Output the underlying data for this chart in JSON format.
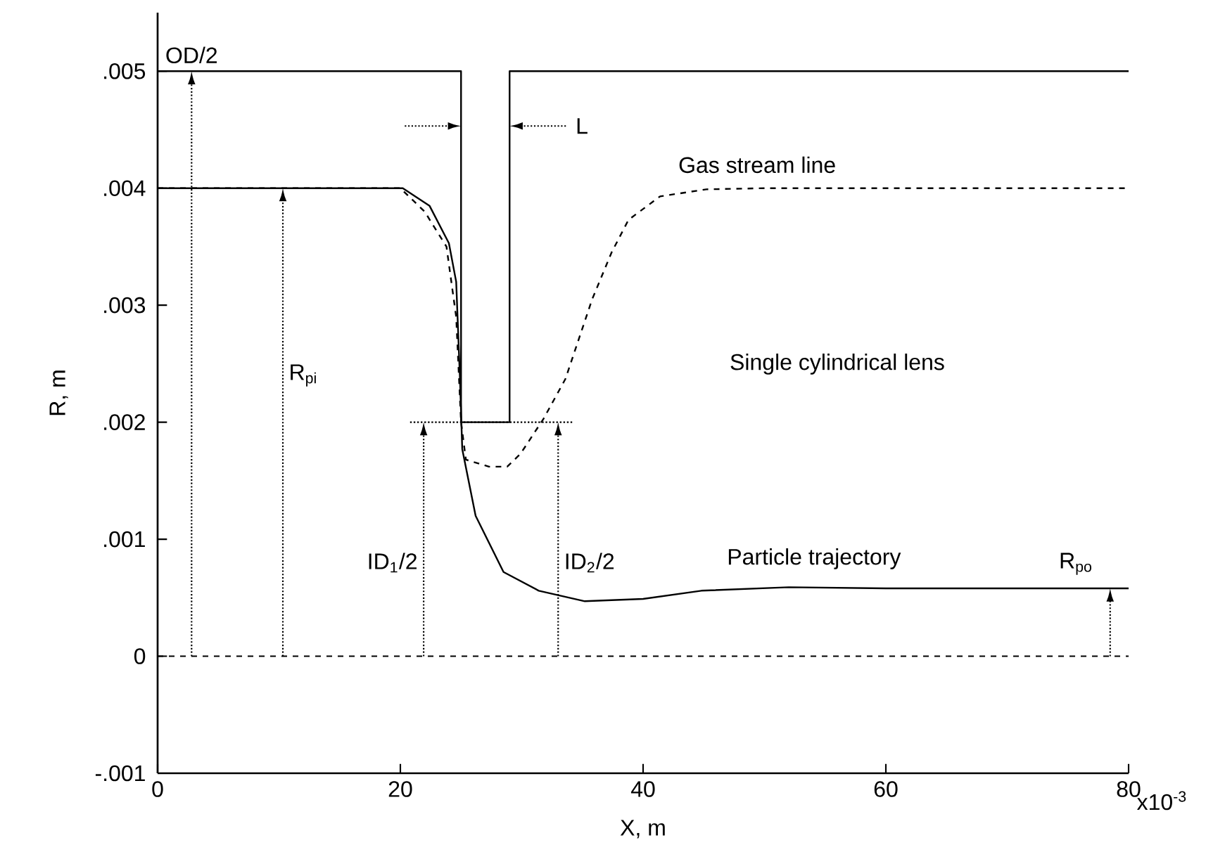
{
  "chart_data": {
    "type": "line",
    "xlabel": "X, m",
    "ylabel": "R, m",
    "xlim": [
      0,
      80
    ],
    "ylim": [
      -0.001,
      0.0055
    ],
    "xticks": [
      0,
      20,
      40,
      60,
      80
    ],
    "yticks": [
      {
        "value": -0.001,
        "label": "-.001"
      },
      0,
      {
        "value": 0.001,
        "label": ".001"
      },
      {
        "value": 0.002,
        "label": ".002"
      },
      {
        "value": 0.003,
        "label": ".003"
      },
      {
        "value": 0.004,
        "label": ".004"
      },
      {
        "value": 0.005,
        "label": ".005"
      }
    ],
    "series": [
      {
        "color": "#000000",
        "line_style": "solid",
        "x": [
          0,
          25,
          25,
          29,
          29,
          80
        ],
        "values": [
          0.005,
          0.005,
          0.002,
          0.002,
          0.005,
          0.005
        ]
      },
      {
        "color": "#000000",
        "line_style": "dashed",
        "x": [
          0,
          20,
          22,
          23.8,
          24.6,
          25,
          25.4,
          27.3,
          28.8,
          29.9,
          31.8,
          33.6,
          35.8,
          37.4,
          38.8,
          41.4,
          45.2,
          50,
          80
        ],
        "values": [
          0.004,
          0.004,
          0.0038,
          0.0035,
          0.0029,
          0.002,
          0.00168,
          0.00162,
          0.00162,
          0.00173,
          0.00203,
          0.00237,
          0.00305,
          0.00345,
          0.00373,
          0.00393,
          0.00399,
          0.004,
          0.004
        ]
      },
      {
        "color": "#000000",
        "line_style": "solid",
        "x": [
          0,
          20.2,
          22.4,
          24,
          24.6,
          24.9,
          25.1,
          26.2,
          28.5,
          31.4,
          35.2,
          40,
          44.8,
          52,
          60,
          80
        ],
        "values": [
          0.004,
          0.004,
          0.00385,
          0.00353,
          0.0032,
          0.0024,
          0.00177,
          0.0012,
          0.00072,
          0.00056,
          0.00047,
          0.00049,
          0.00056,
          0.00059,
          0.00058,
          0.00058
        ]
      },
      {
        "color": "#000000",
        "line_style": "dotted",
        "x": [
          20.8,
          34.2
        ],
        "values": [
          0.002,
          0.002
        ]
      }
    ],
    "ref_lines": [
      {
        "axis": "y",
        "value": 0,
        "line_style": "dashed",
        "color": "#000000"
      }
    ],
    "annotations": [
      "OD/2",
      "L",
      "Gas stream line",
      "R$_{pi}$",
      "Single cylindrical lens",
      "ID$_{1}$/2",
      "ID$_{2}$/2",
      "Particle trajectory",
      "R$_{po}$",
      "x10$^{-3}$"
    ]
  }
}
